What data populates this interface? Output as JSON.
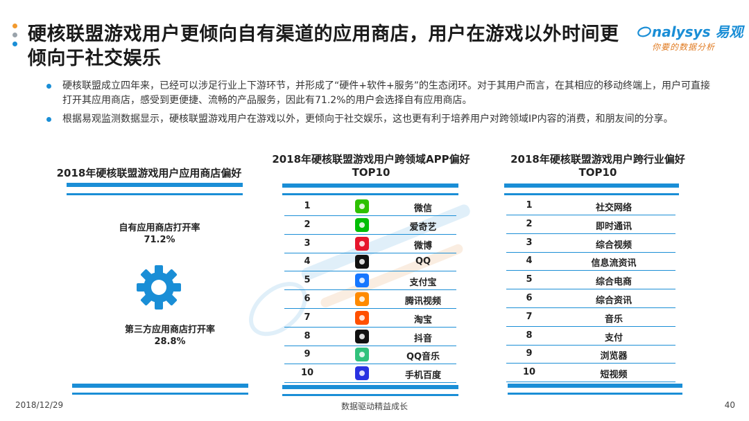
{
  "title": "硬核联盟游戏用户更倾向自有渠道的应用商店，用户在游戏以外时间更倾向于社交娱乐",
  "logo": {
    "brand_latin": "nalysys",
    "brand_cn": "易观",
    "tagline": "你要的数据分析"
  },
  "bullets": [
    "硬核联盟成立四年来，已经可以涉足行业上下游环节，并形成了“硬件+软件+服务”的生态闭环。对于其用户而言，在其相应的移动终端上，用户可直接打开其应用商店，感受到更便捷、流畅的产品服务，因此有71.2%的用户会选择自有应用商店。",
    "根据易观监测数据显示，硬核联盟游戏用户在游戏以外，更倾向于社交娱乐，这也更有利于培养用户对跨领域IP内容的消费，和朋友间的分享。"
  ],
  "panel1": {
    "title": "2018年硬核联盟游戏用户应用商店偏好",
    "own_label": "自有应用商店打开率",
    "own_value": "71.2%",
    "third_label": "第三方应用商店打开率",
    "third_value": "28.8%",
    "own_share": 0.712
  },
  "panel2": {
    "title_line1": "2018年硬核联盟游戏用户跨领域APP偏好",
    "title_line2": "TOP10",
    "rows": [
      {
        "rank": "1",
        "name": "微信",
        "icon": "wechat-icon",
        "color": "#2dc100"
      },
      {
        "rank": "2",
        "name": "爱奇艺",
        "icon": "iqiyi-icon",
        "color": "#00be06"
      },
      {
        "rank": "3",
        "name": "微博",
        "icon": "weibo-icon",
        "color": "#e6162d"
      },
      {
        "rank": "4",
        "name": "QQ",
        "icon": "qq-icon",
        "color": "#111111"
      },
      {
        "rank": "5",
        "name": "支付宝",
        "icon": "alipay-icon",
        "color": "#1677ff"
      },
      {
        "rank": "6",
        "name": "腾讯视频",
        "icon": "tencent-video-icon",
        "color": "#ff8a00"
      },
      {
        "rank": "7",
        "name": "淘宝",
        "icon": "taobao-icon",
        "color": "#ff5000"
      },
      {
        "rank": "8",
        "name": "抖音",
        "icon": "douyin-icon",
        "color": "#111111"
      },
      {
        "rank": "9",
        "name": "QQ音乐",
        "icon": "qq-music-icon",
        "color": "#31c27c"
      },
      {
        "rank": "10",
        "name": "手机百度",
        "icon": "baidu-icon",
        "color": "#2932e1"
      }
    ]
  },
  "panel3": {
    "title_line1": "2018年硬核联盟游戏用户跨行业偏好",
    "title_line2": "TOP10",
    "rows": [
      {
        "rank": "1",
        "name": "社交网络"
      },
      {
        "rank": "2",
        "name": "即时通讯"
      },
      {
        "rank": "3",
        "name": "综合视频"
      },
      {
        "rank": "4",
        "name": "信息流资讯"
      },
      {
        "rank": "5",
        "name": "综合电商"
      },
      {
        "rank": "6",
        "name": "综合资讯"
      },
      {
        "rank": "7",
        "name": "音乐"
      },
      {
        "rank": "8",
        "name": "支付"
      },
      {
        "rank": "9",
        "name": "浏览器"
      },
      {
        "rank": "10",
        "name": "短视频"
      }
    ]
  },
  "footer": {
    "date": "2018/12/29",
    "slogan": "数据驱动精益成长",
    "page": "40"
  },
  "colors": {
    "accent": "#1a8ed6",
    "dot_orange": "#f29a2e",
    "dot_gray": "#9aa3ab"
  }
}
